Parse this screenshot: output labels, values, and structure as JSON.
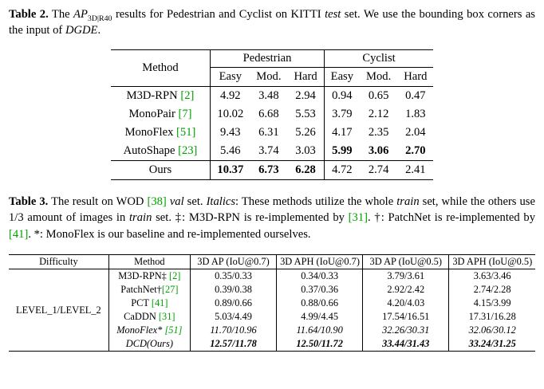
{
  "colors": {
    "citation": "#00A000"
  },
  "caption2": {
    "label": "Table 2.",
    "t1": " The ",
    "ap": "AP",
    "ap_sub": "3D|R40",
    "t2": " results for Pedestrian and Cyclist on KITTI ",
    "test": "test",
    "t3": " set. We use the bounding box corners as the input of ",
    "dgde": "DGDE",
    "t4": "."
  },
  "table2": {
    "header": {
      "method": "Method",
      "group1": "Pedestrian",
      "group2": "Cyclist",
      "easy1": "Easy",
      "mod1": "Mod.",
      "hard1": "Hard",
      "easy2": "Easy",
      "mod2": "Mod.",
      "hard2": "Hard"
    },
    "rows": [
      {
        "name": "M3D-RPN ",
        "cite": "[2]",
        "vals": [
          "4.92",
          "3.48",
          "2.94",
          "0.94",
          "0.65",
          "0.47"
        ]
      },
      {
        "name": "MonoPair ",
        "cite": "[7]",
        "vals": [
          "10.02",
          "6.68",
          "5.53",
          "3.79",
          "2.12",
          "1.83"
        ]
      },
      {
        "name": "MonoFlex ",
        "cite": "[51]",
        "vals": [
          "9.43",
          "6.31",
          "5.26",
          "4.17",
          "2.35",
          "2.04"
        ]
      },
      {
        "name": "AutoShape ",
        "cite": "[23]",
        "vals": [
          "5.46",
          "3.74",
          "3.03",
          "5.99",
          "3.06",
          "2.70"
        ]
      }
    ],
    "ours": {
      "name": "Ours",
      "vals": [
        "10.37",
        "6.73",
        "6.28",
        "4.72",
        "2.74",
        "2.41"
      ]
    }
  },
  "caption3": {
    "label": "Table 3.",
    "t1": " The result on WOD ",
    "c1": "[38]",
    "t2": " ",
    "val": "val",
    "t3": " set. ",
    "italics": "Italics",
    "t4": ": These methods utilize the whole ",
    "train1": "train",
    "t5": " set, while the others use 1/3 amount of images in ",
    "train2": "train",
    "t6": " set. ‡: M3D-RPN is re-implemented by ",
    "c2": "[31]",
    "t7": ". †: PatchNet is re-implemented by ",
    "c3": "[41]",
    "t8": ". *: MonoFlex is our baseline and re-implemented ourselves."
  },
  "table3": {
    "header": [
      "Difficulty",
      "Method",
      "3D AP (IoU@0.7)",
      "3D APH (IoU@0.7)",
      "3D AP (IoU@0.5)",
      "3D APH (IoU@0.5)"
    ],
    "difficulty": "LEVEL_1/LEVEL_2",
    "rows": [
      {
        "name": "M3D-RPN‡ ",
        "cite": "[2]",
        "vals": [
          "0.35/0.33",
          "0.34/0.33",
          "3.79/3.61",
          "3.63/3.46"
        ]
      },
      {
        "name": "PatchNet†",
        "cite": "[27]",
        "vals": [
          "0.39/0.38",
          "0.37/0.36",
          "2.92/2.42",
          "2.74/2.28"
        ]
      },
      {
        "name": "PCT ",
        "cite": "[41]",
        "vals": [
          "0.89/0.66",
          "0.88/0.66",
          "4.20/4.03",
          "4.15/3.99"
        ]
      },
      {
        "name": "CaDDN ",
        "cite": "[31]",
        "vals": [
          "5.03/4.49",
          "4.99/4.45",
          "17.54/16.51",
          "17.31/16.28"
        ]
      },
      {
        "name": "MonoFlex* ",
        "cite": "[51]",
        "vals": [
          "11.70/10.96",
          "11.64/10.90",
          "32.26/30.31",
          "32.06/30.12"
        ]
      },
      {
        "name": "DCD(Ours)",
        "cite": "",
        "vals": [
          "12.57/11.78",
          "12.50/11.72",
          "33.44/31.43",
          "33.24/31.25"
        ]
      }
    ]
  }
}
